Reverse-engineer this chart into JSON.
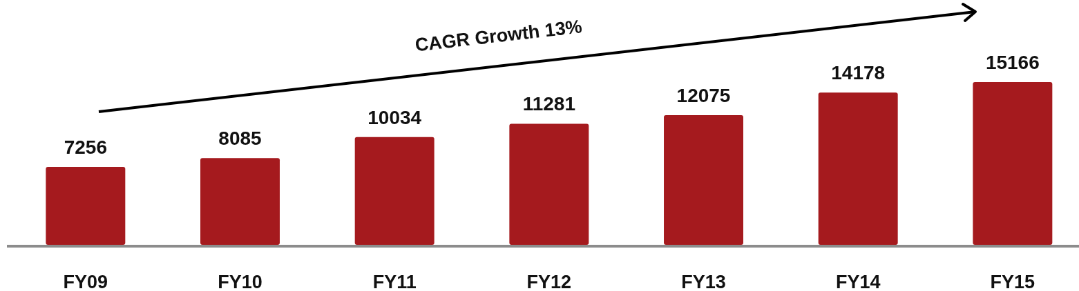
{
  "chart_data": {
    "type": "bar",
    "categories": [
      "FY09",
      "FY10",
      "FY11",
      "FY12",
      "FY13",
      "FY14",
      "FY15"
    ],
    "values": [
      7256,
      8085,
      10034,
      11281,
      12075,
      14178,
      15166
    ],
    "color": "#a51a1e",
    "data_labels": true,
    "tick_labels": "x",
    "annotations": [
      "CAGR Growth 13%"
    ]
  }
}
